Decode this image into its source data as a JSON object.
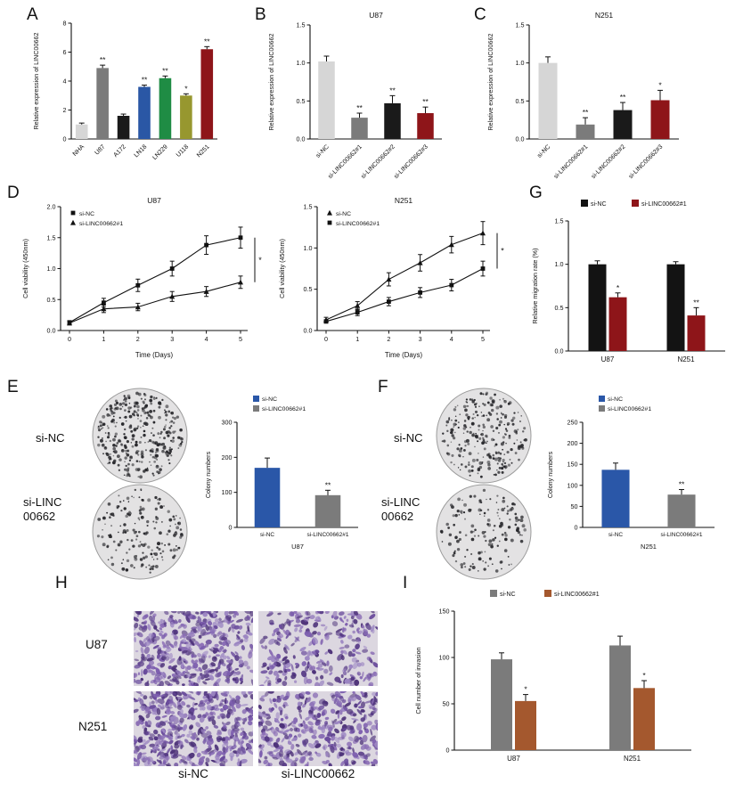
{
  "panel_labels": {
    "A": "A",
    "B": "B",
    "C": "C",
    "D": "D",
    "E": "E",
    "F": "F",
    "G": "G",
    "H": "H",
    "I": "I"
  },
  "panelE": {
    "condition_labels": [
      "si-NC",
      "si-LINC 00662"
    ],
    "cell_line": "U87"
  },
  "panelF": {
    "condition_labels": [
      "si-NC",
      "si-LINC 00662"
    ],
    "cell_line": "N251"
  },
  "panelH": {
    "row_labels": [
      "U87",
      "N251"
    ],
    "col_labels": [
      "si-NC",
      "si-LINC00662"
    ]
  },
  "colony_images": [
    {
      "id": "colony-e-nc",
      "dots": 170
    },
    {
      "id": "colony-e-si",
      "dots": 92
    },
    {
      "id": "colony-f-nc",
      "dots": 137
    },
    {
      "id": "colony-f-si",
      "dots": 78
    }
  ],
  "transwell_images": [
    {
      "id": "tw-u87-nc",
      "density": 420
    },
    {
      "id": "tw-u87-si",
      "density": 260
    },
    {
      "id": "tw-n251-nc",
      "density": 460
    },
    {
      "id": "tw-n251-si",
      "density": 380
    }
  ],
  "chart_data": [
    {
      "id": "panelA",
      "type": "bar",
      "title": "",
      "ylabel": "Relative expression of LINC00662",
      "ylim": [
        0,
        8
      ],
      "yticks": [
        "0",
        "2",
        "4",
        "6",
        "8"
      ],
      "categories": [
        "NHA",
        "U87",
        "A172",
        "LN18",
        "LN229",
        "U118",
        "N251"
      ],
      "values": [
        1.0,
        4.9,
        1.6,
        3.6,
        4.2,
        3.0,
        6.2
      ],
      "errors": [
        0.1,
        0.2,
        0.12,
        0.12,
        0.15,
        0.12,
        0.18
      ],
      "sig": [
        "",
        "**",
        "",
        "**",
        "**",
        "*",
        "**"
      ],
      "colors": [
        "#d6d6d6",
        "#7b7b7b",
        "#1a1a1a",
        "#2a57a5",
        "#1f8c44",
        "#97972f",
        "#8e1519"
      ]
    },
    {
      "id": "panelB",
      "type": "bar",
      "title": "U87",
      "ylabel": "Relative expression of LINC00662",
      "ylim": [
        0,
        1.5
      ],
      "yticks": [
        "0.0",
        "0.5",
        "1.0",
        "1.5"
      ],
      "categories": [
        "si-NC",
        "si-LINC00662#1",
        "si-LINC00662#2",
        "si-LINC00662#3"
      ],
      "values": [
        1.02,
        0.28,
        0.47,
        0.34
      ],
      "errors": [
        0.07,
        0.06,
        0.1,
        0.08
      ],
      "sig": [
        "",
        "**",
        "**",
        "**"
      ],
      "colors": [
        "#d6d6d6",
        "#7b7b7b",
        "#1a1a1a",
        "#8e1519"
      ]
    },
    {
      "id": "panelC",
      "type": "bar",
      "title": "N251",
      "ylabel": "Relative expression of LINC00662",
      "ylim": [
        0,
        1.5
      ],
      "yticks": [
        "0.0",
        "0.5",
        "1.0",
        "1.5"
      ],
      "categories": [
        "si-NC",
        "si-LINC00662#1",
        "si-LINC00662#2",
        "si-LINC00662#3"
      ],
      "values": [
        1.0,
        0.19,
        0.38,
        0.51
      ],
      "errors": [
        0.08,
        0.09,
        0.1,
        0.13
      ],
      "sig": [
        "",
        "**",
        "**",
        "*"
      ],
      "colors": [
        "#d6d6d6",
        "#7b7b7b",
        "#1a1a1a",
        "#8e1519"
      ]
    },
    {
      "id": "panelD_U87",
      "type": "line",
      "title": "U87",
      "xlabel": "Time (Days)",
      "ylabel": "Cell viability (450nm)",
      "ylim": [
        0,
        2.0
      ],
      "yticks": [
        "0.0",
        "0.5",
        "1.0",
        "1.5",
        "2.0"
      ],
      "x": [
        0,
        1,
        2,
        3,
        4,
        5
      ],
      "series": [
        {
          "name": "si-NC",
          "marker": "square",
          "values": [
            0.13,
            0.45,
            0.73,
            1.0,
            1.38,
            1.5
          ],
          "errors": [
            0.03,
            0.07,
            0.1,
            0.12,
            0.15,
            0.17
          ]
        },
        {
          "name": "si-LINC00662#1",
          "marker": "triangle",
          "values": [
            0.12,
            0.35,
            0.38,
            0.55,
            0.63,
            0.78
          ],
          "errors": [
            0.03,
            0.06,
            0.06,
            0.08,
            0.08,
            0.1
          ]
        }
      ],
      "sig": "*"
    },
    {
      "id": "panelD_N251",
      "type": "line",
      "title": "N251",
      "xlabel": "Time (Days)",
      "ylabel": "Cell viability (450nm)",
      "ylim": [
        0,
        1.5
      ],
      "yticks": [
        "0.0",
        "0.5",
        "1.0",
        "1.5"
      ],
      "x": [
        0,
        1,
        2,
        3,
        4,
        5
      ],
      "series": [
        {
          "name": "si-NC",
          "marker": "triangle",
          "values": [
            0.13,
            0.3,
            0.62,
            0.82,
            1.04,
            1.18
          ],
          "errors": [
            0.03,
            0.05,
            0.08,
            0.1,
            0.1,
            0.14
          ]
        },
        {
          "name": "si-LINC00662#1",
          "marker": "square",
          "values": [
            0.11,
            0.22,
            0.35,
            0.46,
            0.55,
            0.75
          ],
          "errors": [
            0.02,
            0.04,
            0.05,
            0.06,
            0.07,
            0.09
          ]
        }
      ],
      "sig": "*"
    },
    {
      "id": "panelG",
      "type": "grouped_bar",
      "ylabel": "Relative migration rate (%)",
      "ylim": [
        0,
        1.5
      ],
      "yticks": [
        "0.0",
        "0.5",
        "1.0",
        "1.5"
      ],
      "categories": [
        "U87",
        "N251"
      ],
      "series": [
        {
          "name": "si-NC",
          "color": "#131313",
          "values": [
            1.0,
            1.0
          ],
          "errors": [
            0.04,
            0.03
          ],
          "sig": [
            "",
            ""
          ]
        },
        {
          "name": "si-LINC00662#1",
          "color": "#8e1519",
          "values": [
            0.62,
            0.41
          ],
          "errors": [
            0.05,
            0.09
          ],
          "sig": [
            "*",
            "**"
          ]
        }
      ],
      "legend_position": "top"
    },
    {
      "id": "panelE_bar",
      "type": "bar",
      "ylabel": "Colony numbers",
      "xlabel": "U87",
      "ylim": [
        0,
        300
      ],
      "yticks": [
        "0",
        "100",
        "200",
        "300"
      ],
      "categories": [
        "si-NC",
        "si-LINC00662#1"
      ],
      "values": [
        170,
        92
      ],
      "errors": [
        28,
        14
      ],
      "sig": [
        "",
        "**"
      ],
      "colors": [
        "#2a57a8",
        "#7b7b7b"
      ],
      "legend_position": "top"
    },
    {
      "id": "panelF_bar",
      "type": "bar",
      "ylabel": "Colony numbers",
      "xlabel": "N251",
      "ylim": [
        0,
        250
      ],
      "yticks": [
        "0",
        "50",
        "100",
        "150",
        "200",
        "250"
      ],
      "categories": [
        "si-NC",
        "si-LINC00662#1"
      ],
      "values": [
        137,
        78
      ],
      "errors": [
        16,
        12
      ],
      "sig": [
        "",
        "**"
      ],
      "colors": [
        "#2a57a8",
        "#7b7b7b"
      ],
      "legend_position": "top"
    },
    {
      "id": "panelI",
      "type": "grouped_bar",
      "ylabel": "Cell number of invasion",
      "ylim": [
        0,
        150
      ],
      "yticks": [
        "0",
        "50",
        "100",
        "150"
      ],
      "categories": [
        "U87",
        "N251"
      ],
      "series": [
        {
          "name": "si-NC",
          "color": "#7b7b7b",
          "values": [
            98,
            113
          ],
          "errors": [
            7,
            10
          ],
          "sig": [
            "",
            ""
          ]
        },
        {
          "name": "si-LINC00662#1",
          "color": "#a4582e",
          "values": [
            53,
            67
          ],
          "errors": [
            7,
            8
          ],
          "sig": [
            "*",
            "*"
          ]
        }
      ],
      "legend_position": "top"
    }
  ]
}
